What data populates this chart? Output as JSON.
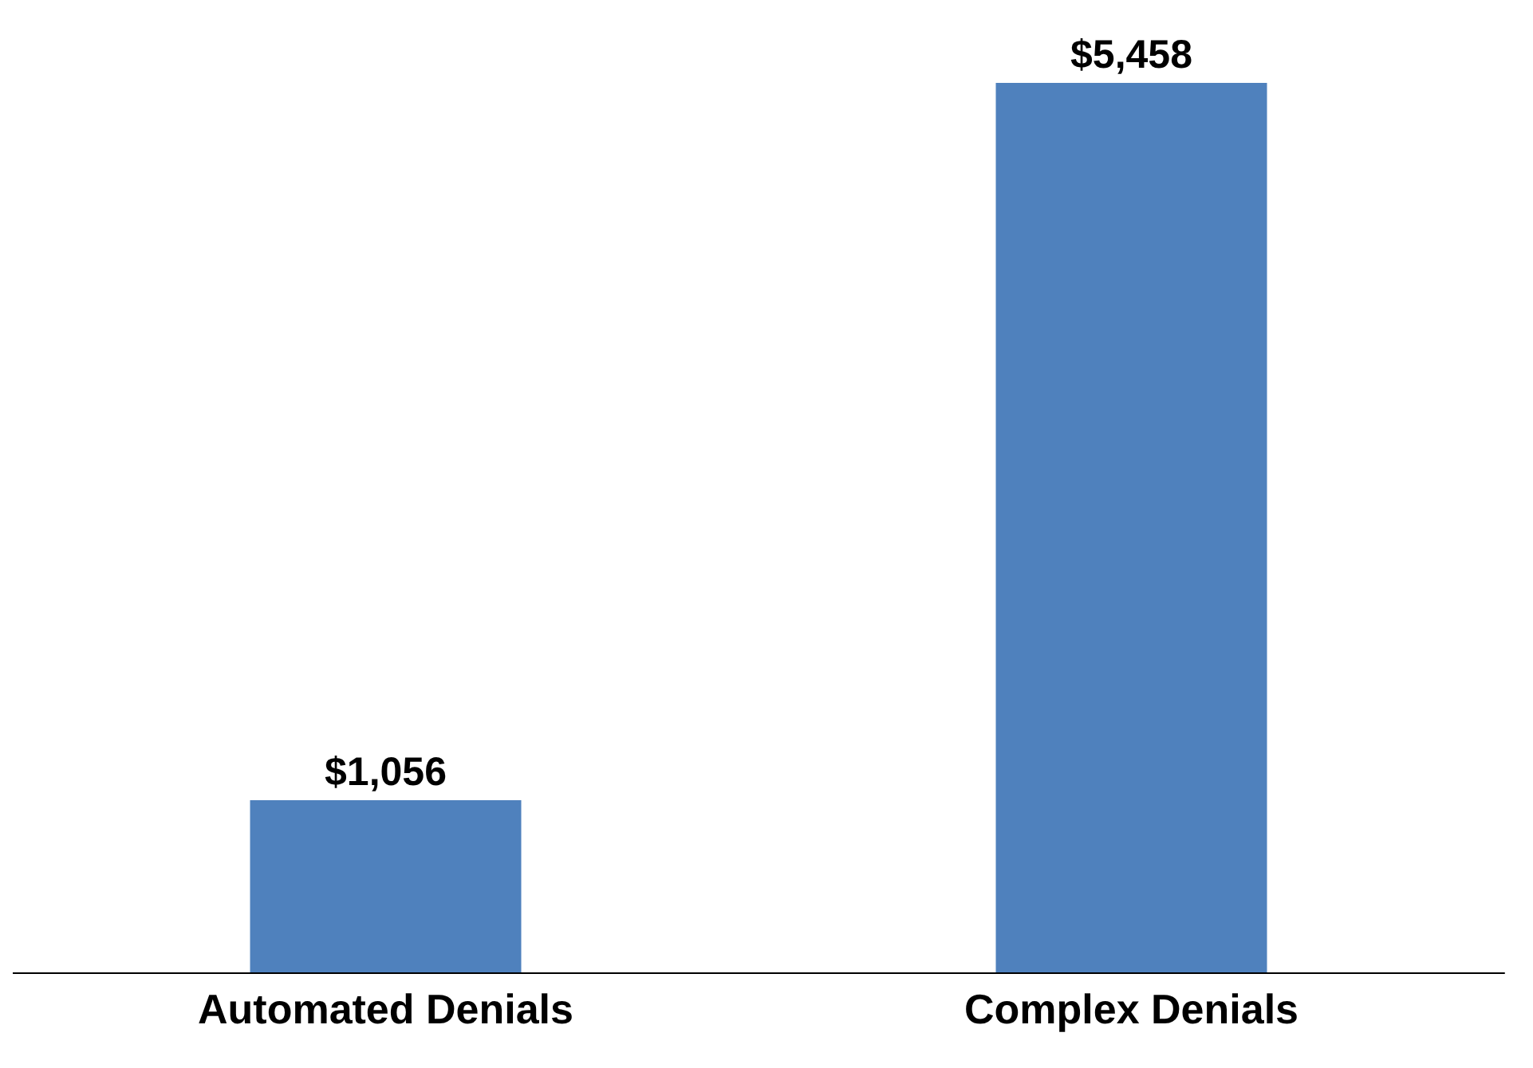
{
  "chart_data": {
    "type": "bar",
    "categories": [
      "Automated Denials",
      "Complex Denials"
    ],
    "values": [
      1056,
      5458
    ],
    "value_labels": [
      "$1,056",
      "$5,458"
    ],
    "color": "#4f81bd"
  }
}
